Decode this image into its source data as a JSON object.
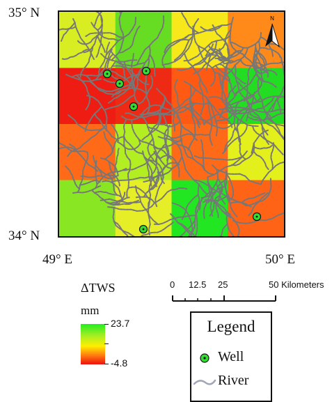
{
  "map": {
    "lat_top": "35° N",
    "lat_bottom": "34° N",
    "lon_left": "49° E",
    "lon_right": "50° E",
    "north_arrow_label": "N",
    "grid_rows": 4,
    "grid_cols": 4,
    "cell_colors": [
      [
        "#d9ee22",
        "#66dd22",
        "#f7e81c",
        "#ff8a1a"
      ],
      [
        "#ee1c12",
        "#ee2a14",
        "#ff5a14",
        "#22dd22"
      ],
      [
        "#ff6a18",
        "#b2ee22",
        "#ff6a18",
        "#e4f01c"
      ],
      [
        "#88e622",
        "#e6ee28",
        "#22e622",
        "#ff6416"
      ]
    ],
    "river_color": "#777777",
    "well_color": "#33dd33"
  },
  "tws_legend": {
    "title": "ΔTWS",
    "unit": "mm",
    "max": "23.7",
    "min": "-4.8"
  },
  "scale_bar": {
    "ticks": [
      "0",
      "12.5",
      "25",
      "50"
    ],
    "unit": "Kilometers"
  },
  "legend": {
    "title": "Legend",
    "items": [
      {
        "label": "Well",
        "icon": "well-icon"
      },
      {
        "label": "River",
        "icon": "river-icon"
      }
    ]
  }
}
